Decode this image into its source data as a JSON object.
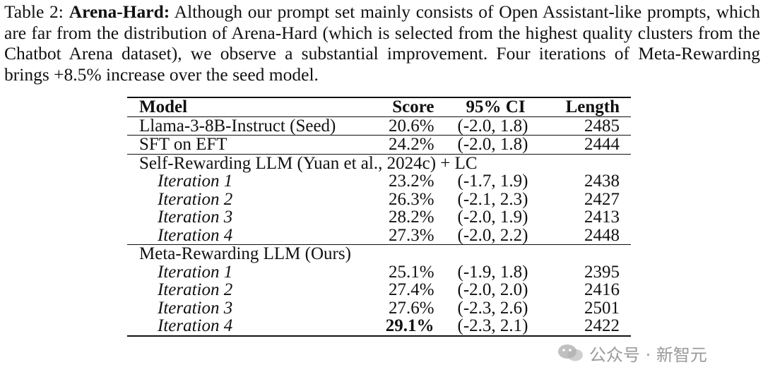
{
  "caption": {
    "label": "Table 2:",
    "title": "Arena-Hard:",
    "text": "Although our prompt set mainly consists of Open Assistant-like prompts, which are far from the distribution of Arena-Hard (which is selected from the highest quality clusters from the Chatbot Arena dataset), we observe a substantial improvement. Four iterations of Meta-Rewarding brings +8.5% increase over the seed model."
  },
  "table": {
    "headers": [
      "Model",
      "Score",
      "95% CI",
      "Length"
    ],
    "single_rows": [
      {
        "model": "Llama-3-8B-Instruct (Seed)",
        "score": "20.6%",
        "ci": "(-2.0, 1.8)",
        "length": "2485"
      },
      {
        "model": "SFT on EFT",
        "score": "24.2%",
        "ci": "(-2.0, 1.8)",
        "length": "2444"
      }
    ],
    "groups": [
      {
        "title": "Self-Rewarding LLM (Yuan et al., 2024c) + LC",
        "rows": [
          {
            "model": "Iteration 1",
            "score": "23.2%",
            "ci": "(-1.7, 1.9)",
            "length": "2438"
          },
          {
            "model": "Iteration 2",
            "score": "26.3%",
            "ci": "(-2.1, 2.3)",
            "length": "2427"
          },
          {
            "model": "Iteration 3",
            "score": "28.2%",
            "ci": "(-2.0, 1.9)",
            "length": "2413"
          },
          {
            "model": "Iteration 4",
            "score": "27.3%",
            "ci": "(-2.0, 2.2)",
            "length": "2448"
          }
        ]
      },
      {
        "title": "Meta-Rewarding LLM (Ours)",
        "rows": [
          {
            "model": "Iteration 1",
            "score": "25.1%",
            "ci": "(-1.9, 1.8)",
            "length": "2395"
          },
          {
            "model": "Iteration 2",
            "score": "27.4%",
            "ci": "(-2.0, 2.0)",
            "length": "2416"
          },
          {
            "model": "Iteration 3",
            "score": "27.6%",
            "ci": "(-2.3, 2.6)",
            "length": "2501"
          },
          {
            "model": "Iteration 4",
            "score": "29.1%",
            "ci": "(-2.3, 2.1)",
            "length": "2422"
          }
        ]
      }
    ]
  },
  "watermark": {
    "text": "公众号 · 新智元",
    "icon": "wechat-icon"
  }
}
